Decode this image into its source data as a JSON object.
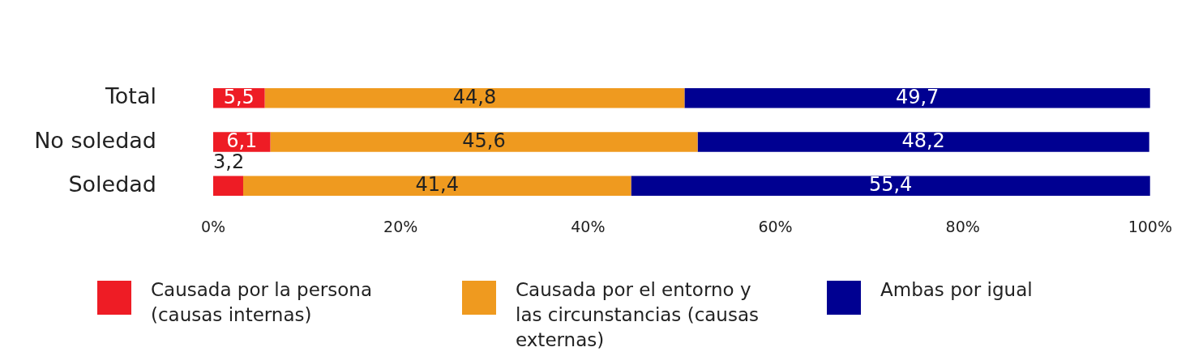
{
  "chart_data": {
    "type": "bar",
    "orientation": "horizontal",
    "stacked": true,
    "categories": [
      "Total",
      "No soledad",
      "Soledad"
    ],
    "series": [
      {
        "name": "Causada por la persona (causas internas)",
        "color": "#ee1c25",
        "values": [
          5.5,
          6.1,
          3.2
        ],
        "value_labels": [
          "5,5",
          "6,1",
          "3,2"
        ]
      },
      {
        "name": "Causada por el entorno y las circunstancias (causas externas)",
        "color": "#ef9a1f",
        "values": [
          44.8,
          45.6,
          41.4
        ],
        "value_labels": [
          "44,8",
          "45,6",
          "41,4"
        ]
      },
      {
        "name": "Ambas por igual",
        "color": "#000091",
        "values": [
          49.7,
          48.2,
          55.4
        ],
        "value_labels": [
          "49,7",
          "48,2",
          "55,4"
        ]
      }
    ],
    "xlim": [
      0,
      100
    ],
    "xticks": [
      {
        "value": 0,
        "label": "0%"
      },
      {
        "value": 20,
        "label": "20%"
      },
      {
        "value": 40,
        "label": "40%"
      },
      {
        "value": 60,
        "label": "60%"
      },
      {
        "value": 80,
        "label": "80%"
      },
      {
        "value": 100,
        "label": "100%"
      }
    ],
    "grid": false,
    "legend": "bottom"
  }
}
